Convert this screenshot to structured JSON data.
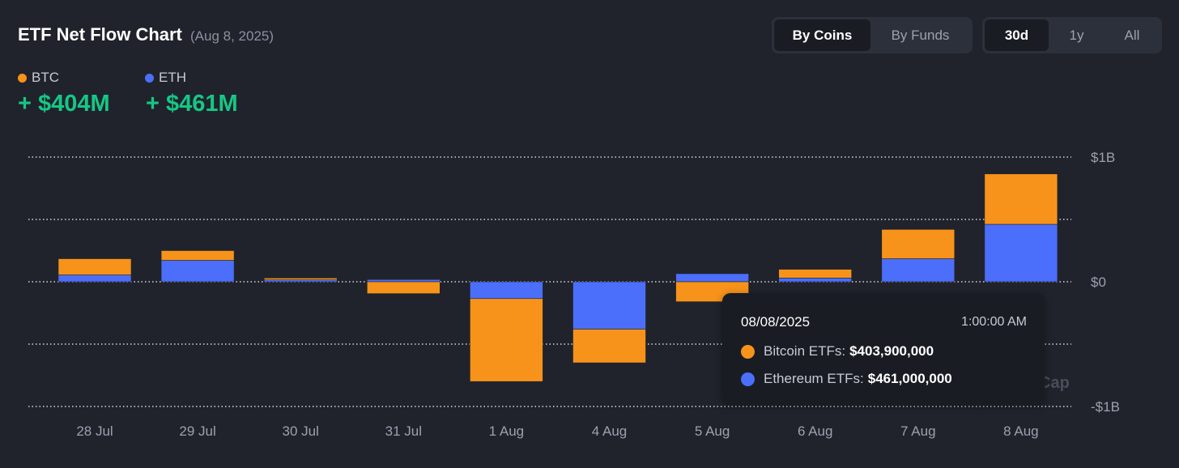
{
  "header": {
    "title": "ETF Net Flow Chart",
    "date": "(Aug 8, 2025)"
  },
  "view_toggle": {
    "coins": "By Coins",
    "funds": "By Funds",
    "active": "By Coins"
  },
  "range_toggle": {
    "d30": "30d",
    "y1": "1y",
    "all": "All",
    "active": "30d"
  },
  "legend": {
    "btc": {
      "label": "BTC",
      "total": "+ $404M",
      "color": "#f7931a"
    },
    "eth": {
      "label": "ETH",
      "total": "+ $461M",
      "color": "#4b6ffa"
    }
  },
  "tooltip": {
    "date": "08/08/2025",
    "time": "1:00:00 AM",
    "btc_label": "Bitcoin ETFs:",
    "btc_value": "$403,900,000",
    "eth_label": "Ethereum ETFs:",
    "eth_value": "$461,000,000"
  },
  "watermark": "Cap",
  "chart_data": {
    "type": "bar",
    "stacked": true,
    "title": "ETF Net Flow Chart",
    "unit": "USD millions",
    "categories": [
      "28 Jul",
      "29 Jul",
      "30 Jul",
      "31 Jul",
      "1 Aug",
      "4 Aug",
      "5 Aug",
      "6 Aug",
      "7 Aug",
      "8 Aug"
    ],
    "series": [
      {
        "name": "ETH",
        "color": "#4b6ffa",
        "values": [
          55,
          172,
          15,
          18,
          -135,
          -380,
          65,
          30,
          185,
          461
        ]
      },
      {
        "name": "BTC",
        "color": "#f7931a",
        "values": [
          130,
          78,
          15,
          -95,
          -665,
          -270,
          -160,
          70,
          235,
          404
        ]
      }
    ],
    "ylim": [
      -1000,
      1000
    ],
    "yticks": [
      1000,
      500,
      0,
      -500,
      -1000
    ],
    "ytick_labels": [
      "$1B",
      "",
      "$0",
      "",
      "-$1B"
    ],
    "grid": true,
    "legend_position": "top-left"
  }
}
